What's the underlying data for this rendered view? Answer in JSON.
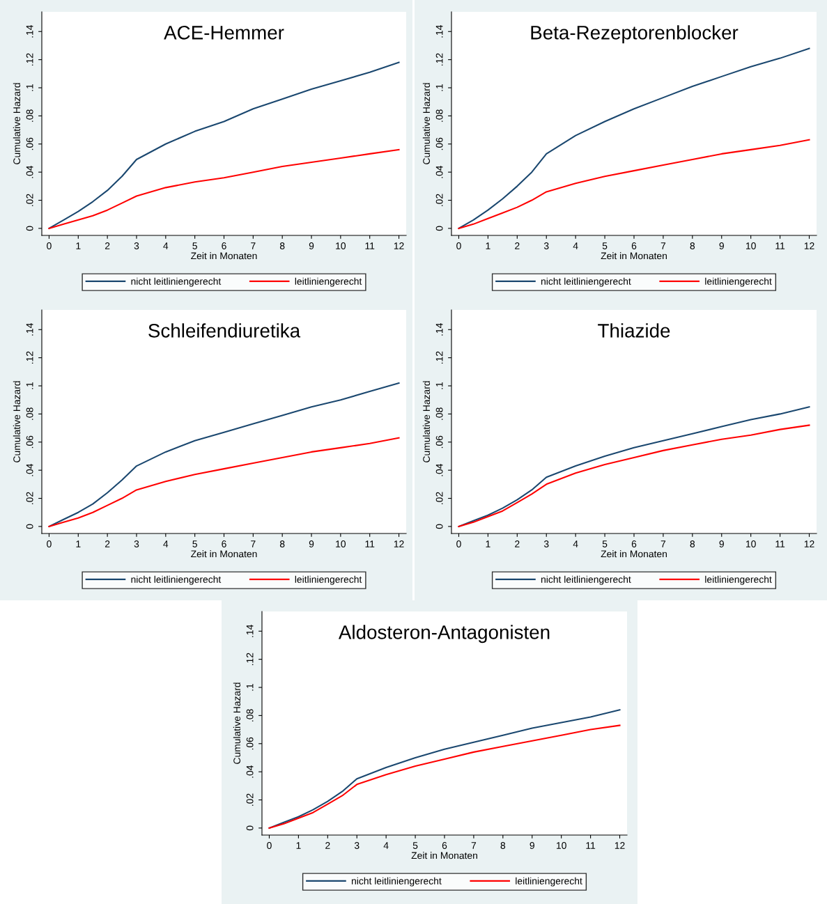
{
  "chart_data": [
    {
      "type": "line",
      "title": "ACE-Hemmer",
      "xlabel": "Zeit in Monaten",
      "ylabel": "Cumulative Hazard",
      "legend": "bottom",
      "grid": false,
      "x": [
        0,
        0.5,
        1,
        1.5,
        2,
        2.5,
        3,
        4,
        5,
        6,
        7,
        8,
        9,
        10,
        11,
        12
      ],
      "xlim": [
        -0.25,
        12.25
      ],
      "ylim": [
        -0.005,
        0.154
      ],
      "xticks": [
        0,
        1,
        2,
        3,
        4,
        5,
        6,
        7,
        8,
        9,
        10,
        11,
        12
      ],
      "yticks": [
        0,
        {
          "value": 0.02,
          "label": ".02"
        },
        {
          "value": 0.04,
          "label": ".04"
        },
        {
          "value": 0.06,
          "label": ".06"
        },
        {
          "value": 0.08,
          "label": ".08"
        },
        {
          "value": 0.1,
          "label": ".1"
        },
        {
          "value": 0.12,
          "label": ".12"
        },
        {
          "value": 0.14,
          "label": ".14"
        }
      ],
      "series": [
        {
          "name": "nicht leitliniengerecht",
          "color": "#1a476f",
          "values": [
            0,
            0.006,
            0.012,
            0.019,
            0.027,
            0.037,
            0.049,
            0.06,
            0.069,
            0.076,
            0.085,
            0.092,
            0.099,
            0.105,
            0.111,
            0.118
          ]
        },
        {
          "name": "leitliniengerecht",
          "color": "#ff0000",
          "values": [
            0,
            0.003,
            0.006,
            0.009,
            0.013,
            0.018,
            0.023,
            0.029,
            0.033,
            0.036,
            0.04,
            0.044,
            0.047,
            0.05,
            0.053,
            0.056
          ]
        }
      ]
    },
    {
      "type": "line",
      "title": "Beta-Rezeptorenblocker",
      "xlabel": "Zeit in Monaten",
      "ylabel": "Cumulative Hazard",
      "legend": "bottom",
      "grid": false,
      "x": [
        0,
        0.5,
        1,
        1.5,
        2,
        2.5,
        3,
        4,
        5,
        6,
        7,
        8,
        9,
        10,
        11,
        12
      ],
      "xlim": [
        -0.25,
        12.25
      ],
      "ylim": [
        -0.005,
        0.154
      ],
      "xticks": [
        0,
        1,
        2,
        3,
        4,
        5,
        6,
        7,
        8,
        9,
        10,
        11,
        12
      ],
      "yticks": [
        0,
        {
          "value": 0.02,
          "label": ".02"
        },
        {
          "value": 0.04,
          "label": ".04"
        },
        {
          "value": 0.06,
          "label": ".06"
        },
        {
          "value": 0.08,
          "label": ".08"
        },
        {
          "value": 0.1,
          "label": ".1"
        },
        {
          "value": 0.12,
          "label": ".12"
        },
        {
          "value": 0.14,
          "label": ".14"
        }
      ],
      "series": [
        {
          "name": "nicht leitliniengerecht",
          "color": "#1a476f",
          "values": [
            0,
            0.006,
            0.013,
            0.021,
            0.03,
            0.04,
            0.053,
            0.066,
            0.076,
            0.085,
            0.093,
            0.101,
            0.108,
            0.115,
            0.121,
            0.128
          ]
        },
        {
          "name": "leitliniengerecht",
          "color": "#ff0000",
          "values": [
            0,
            0.003,
            0.007,
            0.011,
            0.015,
            0.02,
            0.026,
            0.032,
            0.037,
            0.041,
            0.045,
            0.049,
            0.053,
            0.056,
            0.059,
            0.063
          ]
        }
      ]
    },
    {
      "type": "line",
      "title": "Schleifendiuretika",
      "xlabel": "Zeit in Monaten",
      "ylabel": "Cumulative Hazard",
      "legend": "bottom",
      "grid": false,
      "x": [
        0,
        0.5,
        1,
        1.5,
        2,
        2.5,
        3,
        4,
        5,
        6,
        7,
        8,
        9,
        10,
        11,
        12
      ],
      "xlim": [
        -0.25,
        12.25
      ],
      "ylim": [
        -0.005,
        0.154
      ],
      "xticks": [
        0,
        1,
        2,
        3,
        4,
        5,
        6,
        7,
        8,
        9,
        10,
        11,
        12
      ],
      "yticks": [
        0,
        {
          "value": 0.02,
          "label": ".02"
        },
        {
          "value": 0.04,
          "label": ".04"
        },
        {
          "value": 0.06,
          "label": ".06"
        },
        {
          "value": 0.08,
          "label": ".08"
        },
        {
          "value": 0.1,
          "label": ".1"
        },
        {
          "value": 0.12,
          "label": ".12"
        },
        {
          "value": 0.14,
          "label": ".14"
        }
      ],
      "series": [
        {
          "name": "nicht leitliniengerecht",
          "color": "#1a476f",
          "values": [
            0,
            0.005,
            0.01,
            0.016,
            0.024,
            0.033,
            0.043,
            0.053,
            0.061,
            0.067,
            0.073,
            0.079,
            0.085,
            0.09,
            0.096,
            0.102
          ]
        },
        {
          "name": "leitliniengerecht",
          "color": "#ff0000",
          "values": [
            0,
            0.003,
            0.006,
            0.01,
            0.015,
            0.02,
            0.026,
            0.032,
            0.037,
            0.041,
            0.045,
            0.049,
            0.053,
            0.056,
            0.059,
            0.063
          ]
        }
      ]
    },
    {
      "type": "line",
      "title": "Thiazide",
      "xlabel": "Zeit in Monaten",
      "ylabel": "Cumulative Hazard",
      "legend": "bottom",
      "grid": false,
      "x": [
        0,
        0.5,
        1,
        1.5,
        2,
        2.5,
        3,
        4,
        5,
        6,
        7,
        8,
        9,
        10,
        11,
        12
      ],
      "xlim": [
        -0.25,
        12.25
      ],
      "ylim": [
        -0.005,
        0.154
      ],
      "xticks": [
        0,
        1,
        2,
        3,
        4,
        5,
        6,
        7,
        8,
        9,
        10,
        11,
        12
      ],
      "yticks": [
        0,
        {
          "value": 0.02,
          "label": ".02"
        },
        {
          "value": 0.04,
          "label": ".04"
        },
        {
          "value": 0.06,
          "label": ".06"
        },
        {
          "value": 0.08,
          "label": ".08"
        },
        {
          "value": 0.1,
          "label": ".1"
        },
        {
          "value": 0.12,
          "label": ".12"
        },
        {
          "value": 0.14,
          "label": ".14"
        }
      ],
      "series": [
        {
          "name": "nicht leitliniengerecht",
          "color": "#1a476f",
          "values": [
            0,
            0.004,
            0.008,
            0.013,
            0.019,
            0.026,
            0.035,
            0.043,
            0.05,
            0.056,
            0.061,
            0.066,
            0.071,
            0.076,
            0.08,
            0.085
          ]
        },
        {
          "name": "leitliniengerecht",
          "color": "#ff0000",
          "values": [
            0,
            0.003,
            0.007,
            0.011,
            0.017,
            0.023,
            0.03,
            0.038,
            0.044,
            0.049,
            0.054,
            0.058,
            0.062,
            0.065,
            0.069,
            0.072
          ]
        }
      ]
    },
    {
      "type": "line",
      "title": "Aldosteron-Antagonisten",
      "xlabel": "Zeit in Monaten",
      "ylabel": "Cumulative Hazard",
      "legend": "bottom",
      "grid": false,
      "x": [
        0,
        0.5,
        1,
        1.5,
        2,
        2.5,
        3,
        4,
        5,
        6,
        7,
        8,
        9,
        10,
        11,
        12
      ],
      "xlim": [
        -0.25,
        12.25
      ],
      "ylim": [
        -0.005,
        0.154
      ],
      "xticks": [
        0,
        1,
        2,
        3,
        4,
        5,
        6,
        7,
        8,
        9,
        10,
        11,
        12
      ],
      "yticks": [
        0,
        {
          "value": 0.02,
          "label": ".02"
        },
        {
          "value": 0.04,
          "label": ".04"
        },
        {
          "value": 0.06,
          "label": ".06"
        },
        {
          "value": 0.08,
          "label": ".08"
        },
        {
          "value": 0.1,
          "label": ".1"
        },
        {
          "value": 0.12,
          "label": ".12"
        },
        {
          "value": 0.14,
          "label": ".14"
        }
      ],
      "series": [
        {
          "name": "nicht leitliniengerecht",
          "color": "#1a476f",
          "values": [
            0,
            0.004,
            0.008,
            0.013,
            0.019,
            0.026,
            0.035,
            0.043,
            0.05,
            0.056,
            0.061,
            0.066,
            0.071,
            0.075,
            0.079,
            0.084
          ]
        },
        {
          "name": "leitliniengerecht",
          "color": "#ff0000",
          "values": [
            0,
            0.003,
            0.007,
            0.011,
            0.017,
            0.023,
            0.031,
            0.038,
            0.044,
            0.049,
            0.054,
            0.058,
            0.062,
            0.066,
            0.07,
            0.073
          ]
        }
      ]
    }
  ]
}
